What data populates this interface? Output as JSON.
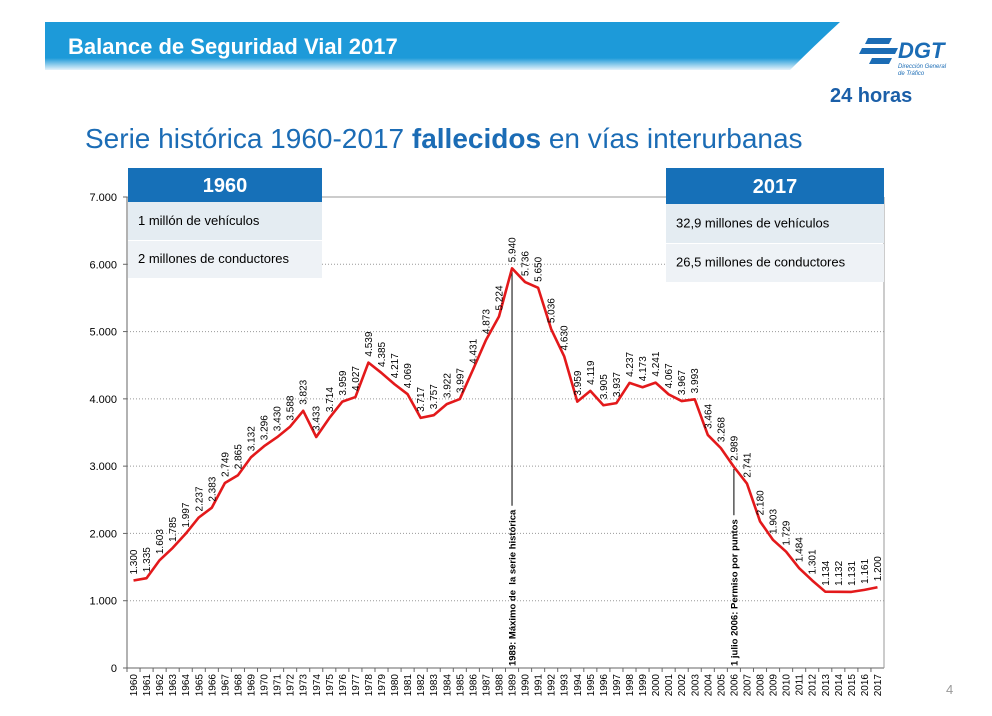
{
  "header": {
    "title": "Balance de Seguridad Vial 2017",
    "logo": "DGT",
    "logo_sub": [
      "Dirección General",
      "de Tráfico"
    ],
    "tagline": "24 horas"
  },
  "page_number": "4",
  "chart_data": {
    "type": "line",
    "title_parts": [
      "Serie histórica 1960-2017 ",
      "fallecidos",
      " en vías interurbanas"
    ],
    "categories": [
      "1960",
      "1961",
      "1962",
      "1963",
      "1964",
      "1965",
      "1966",
      "1967",
      "1968",
      "1969",
      "1970",
      "1971",
      "1972",
      "1973",
      "1974",
      "1975",
      "1976",
      "1977",
      "1978",
      "1979",
      "1980",
      "1981",
      "1982",
      "1983",
      "1984",
      "1985",
      "1986",
      "1987",
      "1988",
      "1989",
      "1990",
      "1991",
      "1992",
      "1993",
      "1994",
      "1995",
      "1996",
      "1997",
      "1998",
      "1999",
      "2000",
      "2001",
      "2002",
      "2003",
      "2004",
      "2005",
      "2006",
      "2007",
      "2008",
      "2009",
      "2010",
      "2011",
      "2012",
      "2013",
      "2014",
      "2015",
      "2016",
      "2017"
    ],
    "values": [
      1300,
      1335,
      1603,
      1785,
      1997,
      2237,
      2383,
      2749,
      2865,
      3132,
      3296,
      3430,
      3588,
      3823,
      3433,
      3714,
      3959,
      4027,
      4539,
      4385,
      4217,
      4069,
      3717,
      3757,
      3922,
      3997,
      4431,
      4873,
      5224,
      5940,
      5736,
      5650,
      5036,
      4630,
      3959,
      4119,
      3905,
      3937,
      4237,
      4173,
      4241,
      4067,
      3967,
      3993,
      3464,
      3268,
      2989,
      2741,
      2180,
      1903,
      1729,
      1484,
      1301,
      1134,
      1132,
      1131,
      1161,
      1200
    ],
    "value_labels": [
      "1.300",
      "1.335",
      "1.603",
      "1.785",
      "1.997",
      "2.237",
      "2.383",
      "2.749",
      "2.865",
      "3.132",
      "3.296",
      "3.430",
      "3.588",
      "3.823",
      "3.433",
      "3.714",
      "3.959",
      "4.027",
      "4.539",
      "4.385",
      "4.217",
      "4.069",
      "3.717",
      "3.757",
      "3.922",
      "3.997",
      "4.431",
      "4.873",
      "5.224",
      "5.940",
      "5.736",
      "5.650",
      "5.036",
      "4.630",
      "3.959",
      "4.119",
      "3.905",
      "3.937",
      "4.237",
      "4.173",
      "4.241",
      "4.067",
      "3.967",
      "3.993",
      "3.464",
      "3.268",
      "2.989",
      "2.741",
      "2.180",
      "1.903",
      "1.729",
      "1.484",
      "1.301",
      "1.134",
      "1.132",
      "1.131",
      "1.161",
      "1.200"
    ],
    "color": "#e3191b",
    "ylim": [
      0,
      7000
    ],
    "yticks": [
      0,
      {
        "value": 1000,
        "label": "1.000"
      },
      {
        "value": 2000,
        "label": "2.000"
      },
      {
        "value": 3000,
        "label": "3.000"
      },
      {
        "value": 4000,
        "label": "4.000"
      },
      {
        "value": 5000,
        "label": "5.000"
      },
      {
        "value": 6000,
        "label": "6.000"
      },
      {
        "value": 7000,
        "label": "7.000"
      }
    ],
    "grid": true,
    "annotations": [
      {
        "text": "1989: Máximo de  la serie histórica",
        "category": "1989"
      },
      {
        "text": "1 julio 2006: Permiso por puntos",
        "category": "2006"
      }
    ],
    "info_boxes": [
      {
        "title": "1960",
        "rows": [
          "1 millón de vehículos",
          "2 millones de conductores"
        ]
      },
      {
        "title": "2017",
        "rows": [
          "32,9 millones de vehículos",
          "26,5 millones de conductores"
        ]
      }
    ]
  }
}
